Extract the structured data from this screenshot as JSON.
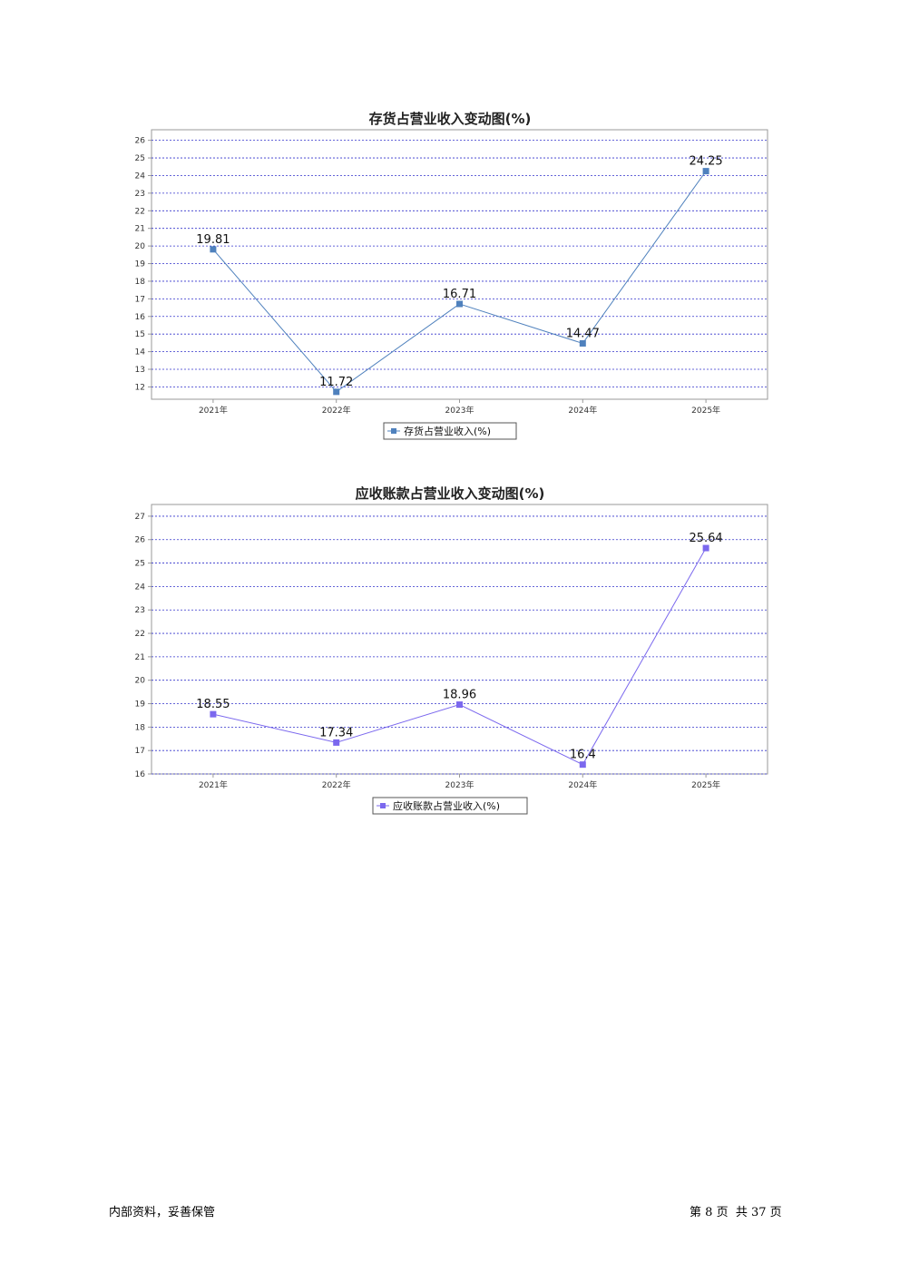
{
  "charts": [
    {
      "title": "存货占营业收入变动图(%)",
      "legend_label": "存货占营业收入(%)",
      "color": "#4f81bd",
      "grid_color": "#3333cc"
    },
    {
      "title": "应收账款占营业收入变动图(%)",
      "legend_label": "应收账款占营业收入(%)",
      "color": "#7b68ee",
      "grid_color": "#3333cc"
    }
  ],
  "chart_data": [
    {
      "type": "line",
      "title": "存货占营业收入变动图(%)",
      "categories": [
        "2021年",
        "2022年",
        "2023年",
        "2024年",
        "2025年"
      ],
      "series": [
        {
          "name": "存货占营业收入(%)",
          "values": [
            19.81,
            11.72,
            16.71,
            14.47,
            24.25
          ]
        }
      ],
      "value_labels": [
        "19.81",
        "11.72",
        "16.71",
        "14.47",
        "24.25"
      ],
      "yticks": [
        12,
        13,
        14,
        15,
        16,
        17,
        18,
        19,
        20,
        21,
        22,
        23,
        24,
        25,
        26
      ],
      "ylim": [
        11.3,
        26.6
      ],
      "grid": true,
      "legend_position": "bottom"
    },
    {
      "type": "line",
      "title": "应收账款占营业收入变动图(%)",
      "categories": [
        "2021年",
        "2022年",
        "2023年",
        "2024年",
        "2025年"
      ],
      "series": [
        {
          "name": "应收账款占营业收入(%)",
          "values": [
            18.55,
            17.34,
            18.96,
            16.4,
            25.64
          ]
        }
      ],
      "value_labels": [
        "18.55",
        "17.34",
        "18.96",
        "16.4",
        "25.64"
      ],
      "yticks": [
        16,
        17,
        18,
        19,
        20,
        21,
        22,
        23,
        24,
        25,
        26,
        27
      ],
      "ylim": [
        16.0,
        27.5
      ],
      "grid": true,
      "legend_position": "bottom"
    }
  ],
  "footer": {
    "left": "内部资料，妥善保管",
    "page_prefix": "第",
    "page_current": "8",
    "page_mid": "页  共",
    "page_total": "37",
    "page_suffix": "页"
  }
}
